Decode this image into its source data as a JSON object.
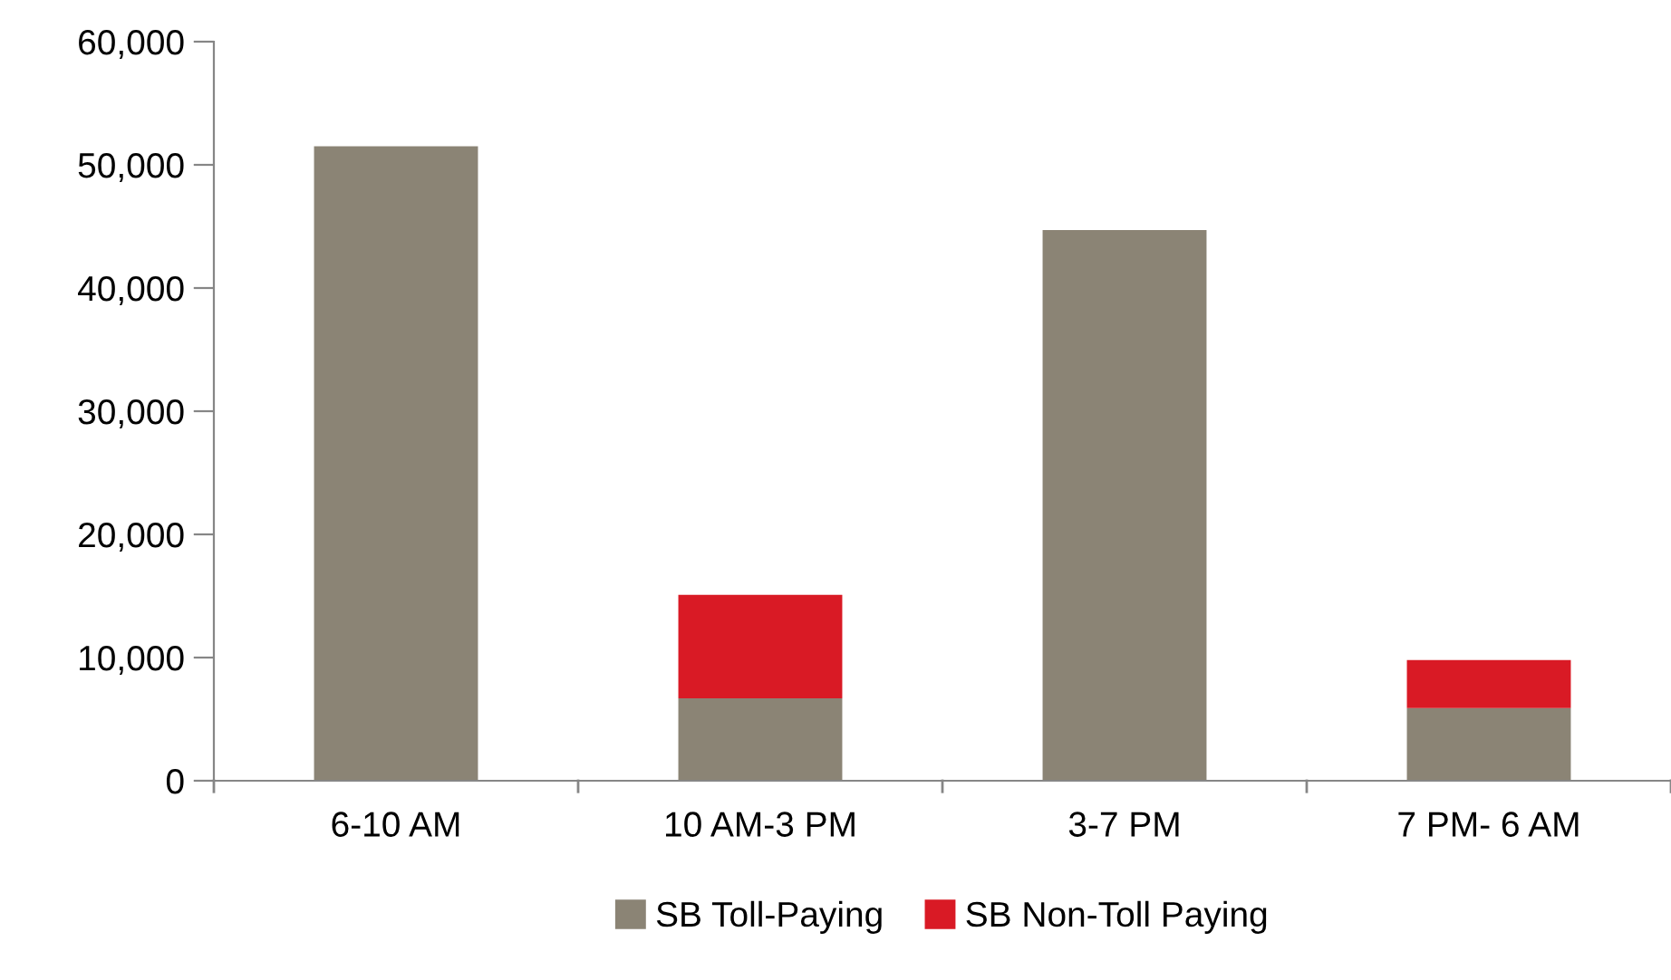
{
  "chart_data": {
    "type": "bar",
    "stacked": true,
    "categories": [
      "6-10 AM",
      "10 AM-3 PM",
      "3-7 PM",
      "7 PM- 6 AM"
    ],
    "series": [
      {
        "name": "SB Toll-Paying",
        "color": "#8b8475",
        "values": [
          51500,
          6700,
          44700,
          5900
        ]
      },
      {
        "name": "SB Non-Toll Paying",
        "color": "#d91a25",
        "values": [
          0,
          8400,
          0,
          3900
        ]
      }
    ],
    "ylim": [
      0,
      60000
    ],
    "yticks": [
      {
        "value": 0,
        "label": "0"
      },
      {
        "value": 10000,
        "label": "10,000"
      },
      {
        "value": 20000,
        "label": "20,000"
      },
      {
        "value": 30000,
        "label": "30,000"
      },
      {
        "value": 40000,
        "label": "40,000"
      },
      {
        "value": 50000,
        "label": "50,000"
      },
      {
        "value": 60000,
        "label": "60,000"
      }
    ],
    "grid": false,
    "legend": "bottom"
  }
}
